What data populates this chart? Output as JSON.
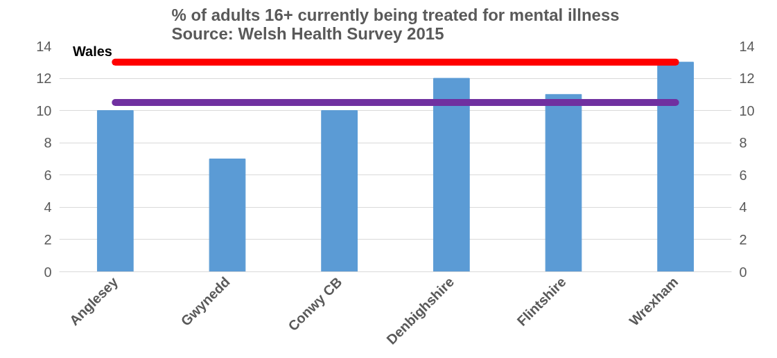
{
  "chart_data": {
    "type": "bar",
    "title": "% of adults 16+ currently being treated for mental illness\nSource: Welsh Health Survey 2015",
    "categories": [
      "Anglesey",
      "Gwynedd",
      "Conwy CB",
      "Denbighshire",
      "Flintshire",
      "Wrexham"
    ],
    "series": [
      {
        "color": "#5b9bd5",
        "values": [
          10,
          7,
          10,
          12,
          11,
          13
        ]
      },
      {
        "type": "line",
        "name": "Wales",
        "color": "#ff0000",
        "values": [
          13,
          13,
          13,
          13,
          13,
          13
        ]
      },
      {
        "type": "line",
        "color": "#7030a0",
        "values": [
          10.5,
          10.5,
          10.5,
          10.5,
          10.5,
          10.5
        ]
      }
    ],
    "ylim": [
      0,
      14
    ],
    "yticks": [
      0,
      2,
      4,
      6,
      8,
      10,
      12,
      14
    ],
    "y2lim": [
      0,
      14
    ],
    "y2ticks": [
      0,
      2,
      4,
      6,
      8,
      10,
      12,
      14
    ],
    "grid": "y"
  }
}
